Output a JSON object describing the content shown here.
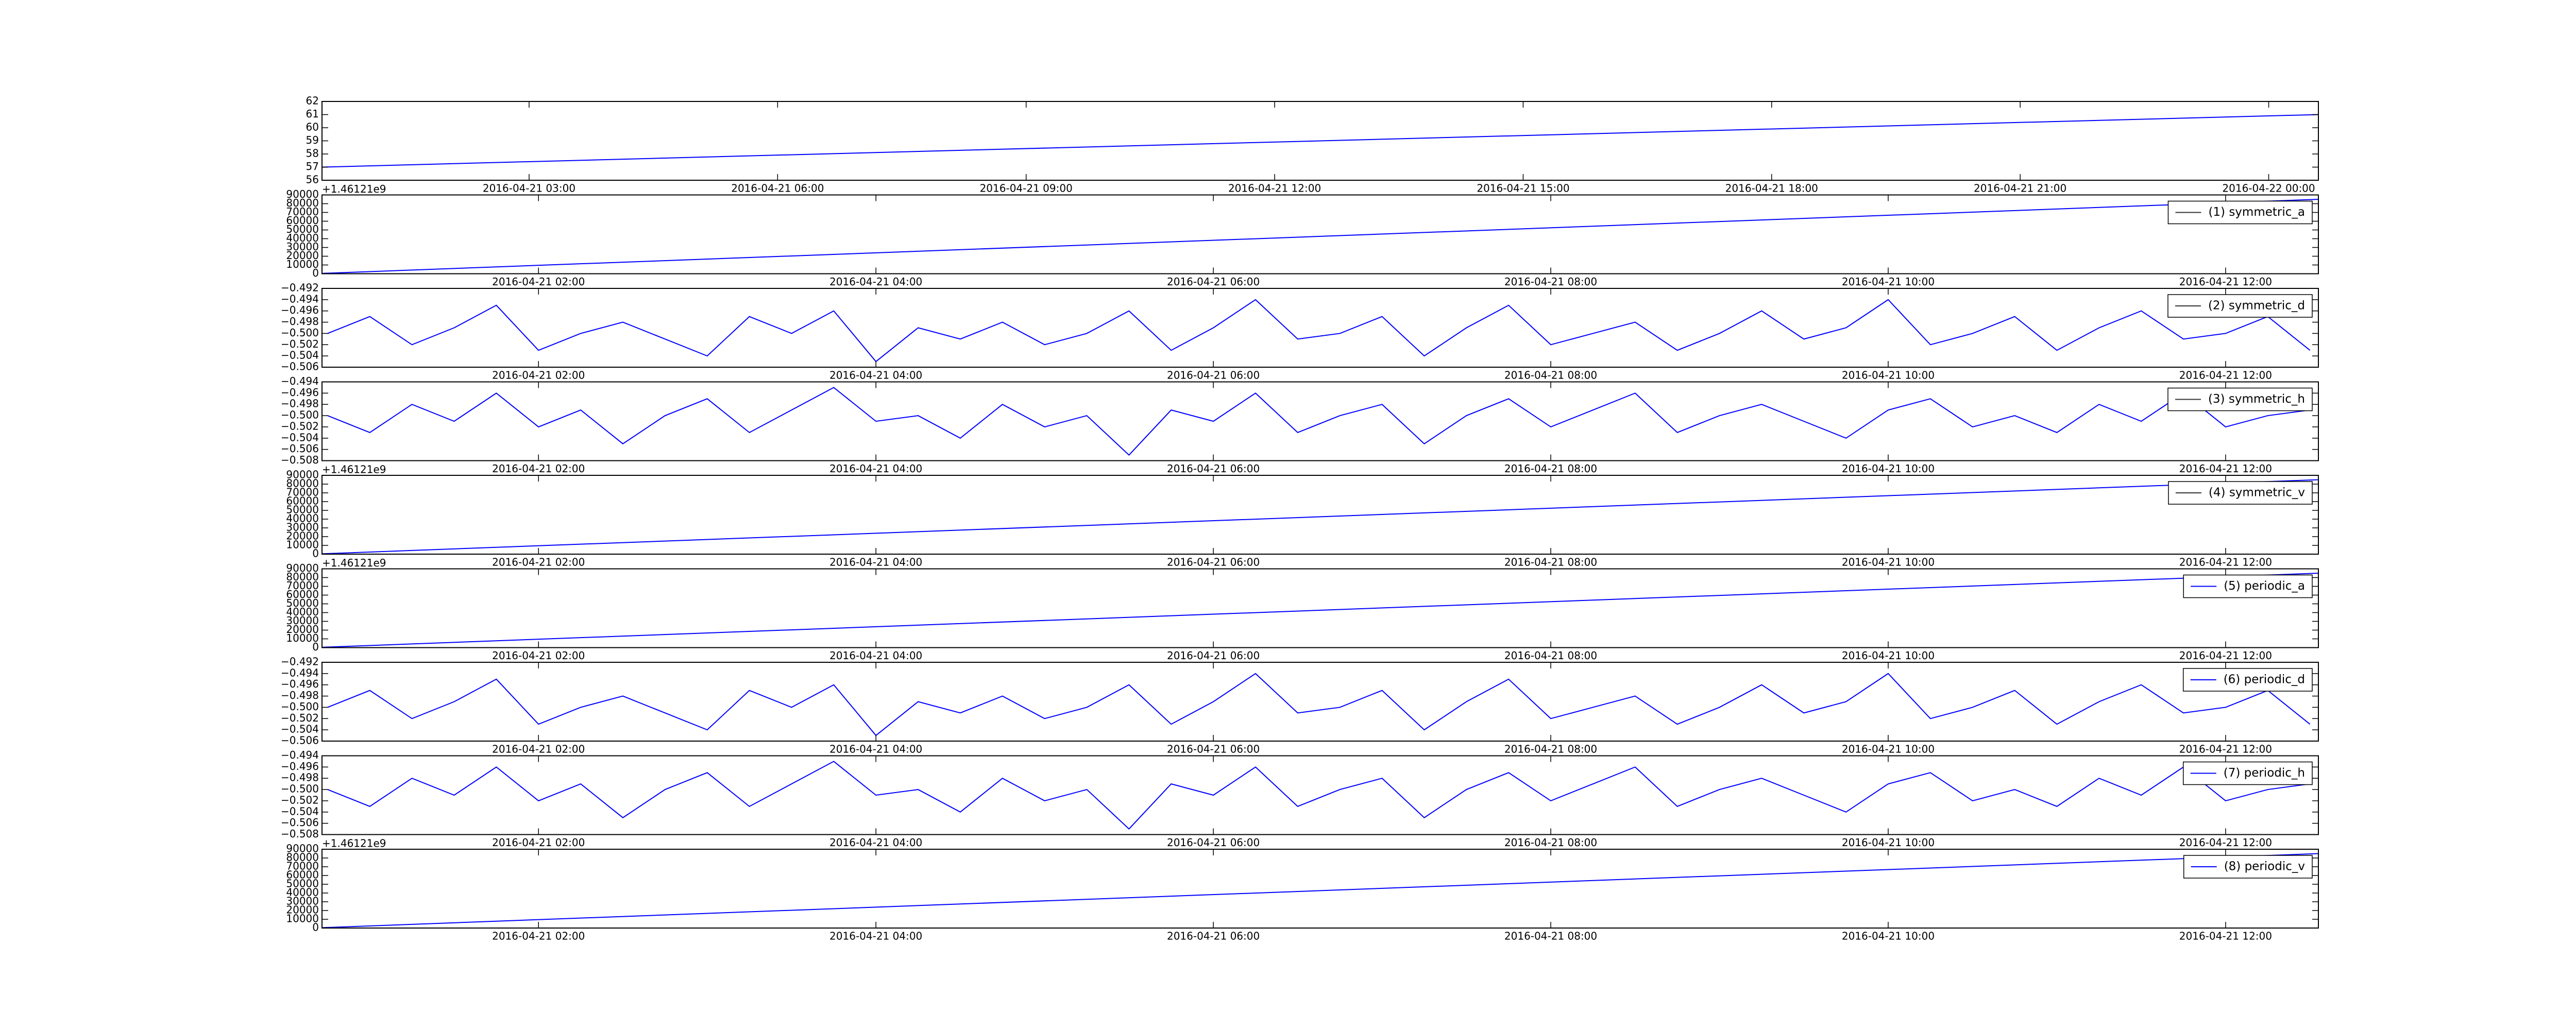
{
  "chart_data": [
    {
      "type": "line",
      "x": [
        "2016-04-21 00:30",
        "2016-04-22 00:36"
      ],
      "series": [
        {
          "color": "#0000ff",
          "values": [
            57.0,
            61.0
          ]
        }
      ],
      "xlim": [
        "2016-04-21 00:30",
        "2016-04-22 00:36"
      ],
      "ylim": [
        56,
        62
      ],
      "yticks": [
        56,
        57,
        58,
        59,
        60,
        61,
        62
      ],
      "xticks": [
        "2016-04-21 03:00",
        "2016-04-21 06:00",
        "2016-04-21 09:00",
        "2016-04-21 12:00",
        "2016-04-21 15:00",
        "2016-04-21 18:00",
        "2016-04-21 21:00",
        "2016-04-22 00:00"
      ]
    },
    {
      "type": "line",
      "offset_text": "+1.46121e9",
      "legend": "upper right",
      "x": [
        "2016-04-21 00:43",
        "2016-04-21 12:33"
      ],
      "series": [
        {
          "name": "(1) symmetric_a",
          "color": "#0000ff",
          "legend_color": "#333333",
          "values": [
            400,
            85000
          ]
        }
      ],
      "xlim": [
        "2016-04-21 00:43",
        "2016-04-21 12:33"
      ],
      "ylim": [
        0,
        90000
      ],
      "yticks": [
        0,
        10000,
        20000,
        30000,
        40000,
        50000,
        60000,
        70000,
        80000,
        90000
      ],
      "xticks": [
        "2016-04-21 02:00",
        "2016-04-21 04:00",
        "2016-04-21 06:00",
        "2016-04-21 08:00",
        "2016-04-21 10:00",
        "2016-04-21 12:00"
      ]
    },
    {
      "type": "line",
      "legend": "upper right",
      "x": [
        "2016-04-21 00:45",
        "2016-04-21 01:00",
        "2016-04-21 01:15",
        "2016-04-21 01:30",
        "2016-04-21 01:45",
        "2016-04-21 02:00",
        "2016-04-21 02:15",
        "2016-04-21 02:30",
        "2016-04-21 02:45",
        "2016-04-21 03:00",
        "2016-04-21 03:15",
        "2016-04-21 03:30",
        "2016-04-21 03:45",
        "2016-04-21 04:00",
        "2016-04-21 04:15",
        "2016-04-21 04:30",
        "2016-04-21 04:45",
        "2016-04-21 05:00",
        "2016-04-21 05:15",
        "2016-04-21 05:30",
        "2016-04-21 05:45",
        "2016-04-21 06:00",
        "2016-04-21 06:15",
        "2016-04-21 06:30",
        "2016-04-21 06:45",
        "2016-04-21 07:00",
        "2016-04-21 07:15",
        "2016-04-21 07:30",
        "2016-04-21 07:45",
        "2016-04-21 08:00",
        "2016-04-21 08:15",
        "2016-04-21 08:30",
        "2016-04-21 08:45",
        "2016-04-21 09:00",
        "2016-04-21 09:15",
        "2016-04-21 09:30",
        "2016-04-21 09:45",
        "2016-04-21 10:00",
        "2016-04-21 10:15",
        "2016-04-21 10:30",
        "2016-04-21 10:45",
        "2016-04-21 11:00",
        "2016-04-21 11:15",
        "2016-04-21 11:30",
        "2016-04-21 11:45",
        "2016-04-21 12:00",
        "2016-04-21 12:15",
        "2016-04-21 12:30"
      ],
      "series": [
        {
          "name": "(2) symmetric_d",
          "color": "#0000ff",
          "legend_color": "#333333",
          "values": [
            -0.5,
            -0.497,
            -0.502,
            -0.499,
            -0.495,
            -0.503,
            -0.5,
            -0.498,
            -0.501,
            -0.504,
            -0.497,
            -0.5,
            -0.496,
            -0.505,
            -0.499,
            -0.501,
            -0.498,
            -0.502,
            -0.5,
            -0.496,
            -0.503,
            -0.499,
            -0.494,
            -0.501,
            -0.5,
            -0.497,
            -0.504,
            -0.499,
            -0.495,
            -0.502,
            -0.5,
            -0.498,
            -0.503,
            -0.5,
            -0.496,
            -0.501,
            -0.499,
            -0.494,
            -0.502,
            -0.5,
            -0.497,
            -0.503,
            -0.499,
            -0.496,
            -0.501,
            -0.5,
            -0.497,
            -0.503
          ]
        }
      ],
      "xlim": [
        "2016-04-21 00:43",
        "2016-04-21 12:33"
      ],
      "ylim": [
        -0.506,
        -0.492
      ],
      "yticks": [
        {
          "value": -0.506,
          "label": "−0.506"
        },
        {
          "value": -0.504,
          "label": "−0.504"
        },
        {
          "value": -0.502,
          "label": "−0.502"
        },
        {
          "value": -0.5,
          "label": "−0.500"
        },
        {
          "value": -0.498,
          "label": "−0.498"
        },
        {
          "value": -0.496,
          "label": "−0.496"
        },
        {
          "value": -0.494,
          "label": "−0.494"
        },
        {
          "value": -0.492,
          "label": "−0.492"
        }
      ],
      "xticks": [
        "2016-04-21 02:00",
        "2016-04-21 04:00",
        "2016-04-21 06:00",
        "2016-04-21 08:00",
        "2016-04-21 10:00",
        "2016-04-21 12:00"
      ]
    },
    {
      "type": "line",
      "legend": "upper right",
      "x": [
        "2016-04-21 00:45",
        "2016-04-21 01:00",
        "2016-04-21 01:15",
        "2016-04-21 01:30",
        "2016-04-21 01:45",
        "2016-04-21 02:00",
        "2016-04-21 02:15",
        "2016-04-21 02:30",
        "2016-04-21 02:45",
        "2016-04-21 03:00",
        "2016-04-21 03:15",
        "2016-04-21 03:30",
        "2016-04-21 03:45",
        "2016-04-21 04:00",
        "2016-04-21 04:15",
        "2016-04-21 04:30",
        "2016-04-21 04:45",
        "2016-04-21 05:00",
        "2016-04-21 05:15",
        "2016-04-21 05:30",
        "2016-04-21 05:45",
        "2016-04-21 06:00",
        "2016-04-21 06:15",
        "2016-04-21 06:30",
        "2016-04-21 06:45",
        "2016-04-21 07:00",
        "2016-04-21 07:15",
        "2016-04-21 07:30",
        "2016-04-21 07:45",
        "2016-04-21 08:00",
        "2016-04-21 08:15",
        "2016-04-21 08:30",
        "2016-04-21 08:45",
        "2016-04-21 09:00",
        "2016-04-21 09:15",
        "2016-04-21 09:30",
        "2016-04-21 09:45",
        "2016-04-21 10:00",
        "2016-04-21 10:15",
        "2016-04-21 10:30",
        "2016-04-21 10:45",
        "2016-04-21 11:00",
        "2016-04-21 11:15",
        "2016-04-21 11:30",
        "2016-04-21 11:45",
        "2016-04-21 12:00",
        "2016-04-21 12:15",
        "2016-04-21 12:30"
      ],
      "series": [
        {
          "name": "(3) symmetric_h",
          "color": "#0000ff",
          "legend_color": "#333333",
          "values": [
            -0.5,
            -0.503,
            -0.498,
            -0.501,
            -0.496,
            -0.502,
            -0.499,
            -0.505,
            -0.5,
            -0.497,
            -0.503,
            -0.499,
            -0.495,
            -0.501,
            -0.5,
            -0.504,
            -0.498,
            -0.502,
            -0.5,
            -0.507,
            -0.499,
            -0.501,
            -0.496,
            -0.503,
            -0.5,
            -0.498,
            -0.505,
            -0.5,
            -0.497,
            -0.502,
            -0.499,
            -0.496,
            -0.503,
            -0.5,
            -0.498,
            -0.501,
            -0.504,
            -0.499,
            -0.497,
            -0.502,
            -0.5,
            -0.503,
            -0.498,
            -0.501,
            -0.496,
            -0.502,
            -0.5,
            -0.499
          ]
        }
      ],
      "xlim": [
        "2016-04-21 00:43",
        "2016-04-21 12:33"
      ],
      "ylim": [
        -0.508,
        -0.494
      ],
      "yticks": [
        {
          "value": -0.508,
          "label": "−0.508"
        },
        {
          "value": -0.506,
          "label": "−0.506"
        },
        {
          "value": -0.504,
          "label": "−0.504"
        },
        {
          "value": -0.502,
          "label": "−0.502"
        },
        {
          "value": -0.5,
          "label": "−0.500"
        },
        {
          "value": -0.498,
          "label": "−0.498"
        },
        {
          "value": -0.496,
          "label": "−0.496"
        },
        {
          "value": -0.494,
          "label": "−0.494"
        }
      ],
      "xticks": [
        "2016-04-21 02:00",
        "2016-04-21 04:00",
        "2016-04-21 06:00",
        "2016-04-21 08:00",
        "2016-04-21 10:00",
        "2016-04-21 12:00"
      ]
    },
    {
      "type": "line",
      "offset_text": "+1.46121e9",
      "legend": "upper right",
      "x": [
        "2016-04-21 00:43",
        "2016-04-21 12:33"
      ],
      "series": [
        {
          "name": "(4) symmetric_v",
          "color": "#0000ff",
          "legend_color": "#333333",
          "values": [
            400,
            85000
          ]
        }
      ],
      "xlim": [
        "2016-04-21 00:43",
        "2016-04-21 12:33"
      ],
      "ylim": [
        0,
        90000
      ],
      "yticks": [
        0,
        10000,
        20000,
        30000,
        40000,
        50000,
        60000,
        70000,
        80000,
        90000
      ],
      "xticks": [
        "2016-04-21 02:00",
        "2016-04-21 04:00",
        "2016-04-21 06:00",
        "2016-04-21 08:00",
        "2016-04-21 10:00",
        "2016-04-21 12:00"
      ]
    },
    {
      "type": "line",
      "offset_text": "+1.46121e9",
      "legend": "upper right",
      "x": [
        "2016-04-21 00:43",
        "2016-04-21 12:33"
      ],
      "series": [
        {
          "name": "(5) periodic_a",
          "color": "#0000ff",
          "legend_color": "#0000ff",
          "values": [
            400,
            85000
          ]
        }
      ],
      "xlim": [
        "2016-04-21 00:43",
        "2016-04-21 12:33"
      ],
      "ylim": [
        0,
        90000
      ],
      "yticks": [
        0,
        10000,
        20000,
        30000,
        40000,
        50000,
        60000,
        70000,
        80000,
        90000
      ],
      "xticks": [
        "2016-04-21 02:00",
        "2016-04-21 04:00",
        "2016-04-21 06:00",
        "2016-04-21 08:00",
        "2016-04-21 10:00",
        "2016-04-21 12:00"
      ]
    },
    {
      "type": "line",
      "legend": "upper right",
      "x": [
        "2016-04-21 00:45",
        "2016-04-21 01:00",
        "2016-04-21 01:15",
        "2016-04-21 01:30",
        "2016-04-21 01:45",
        "2016-04-21 02:00",
        "2016-04-21 02:15",
        "2016-04-21 02:30",
        "2016-04-21 02:45",
        "2016-04-21 03:00",
        "2016-04-21 03:15",
        "2016-04-21 03:30",
        "2016-04-21 03:45",
        "2016-04-21 04:00",
        "2016-04-21 04:15",
        "2016-04-21 04:30",
        "2016-04-21 04:45",
        "2016-04-21 05:00",
        "2016-04-21 05:15",
        "2016-04-21 05:30",
        "2016-04-21 05:45",
        "2016-04-21 06:00",
        "2016-04-21 06:15",
        "2016-04-21 06:30",
        "2016-04-21 06:45",
        "2016-04-21 07:00",
        "2016-04-21 07:15",
        "2016-04-21 07:30",
        "2016-04-21 07:45",
        "2016-04-21 08:00",
        "2016-04-21 08:15",
        "2016-04-21 08:30",
        "2016-04-21 08:45",
        "2016-04-21 09:00",
        "2016-04-21 09:15",
        "2016-04-21 09:30",
        "2016-04-21 09:45",
        "2016-04-21 10:00",
        "2016-04-21 10:15",
        "2016-04-21 10:30",
        "2016-04-21 10:45",
        "2016-04-21 11:00",
        "2016-04-21 11:15",
        "2016-04-21 11:30",
        "2016-04-21 11:45",
        "2016-04-21 12:00",
        "2016-04-21 12:15",
        "2016-04-21 12:30"
      ],
      "series": [
        {
          "name": "(6) periodic_d",
          "color": "#0000ff",
          "legend_color": "#0000ff",
          "values": [
            -0.5,
            -0.497,
            -0.502,
            -0.499,
            -0.495,
            -0.503,
            -0.5,
            -0.498,
            -0.501,
            -0.504,
            -0.497,
            -0.5,
            -0.496,
            -0.505,
            -0.499,
            -0.501,
            -0.498,
            -0.502,
            -0.5,
            -0.496,
            -0.503,
            -0.499,
            -0.494,
            -0.501,
            -0.5,
            -0.497,
            -0.504,
            -0.499,
            -0.495,
            -0.502,
            -0.5,
            -0.498,
            -0.503,
            -0.5,
            -0.496,
            -0.501,
            -0.499,
            -0.494,
            -0.502,
            -0.5,
            -0.497,
            -0.503,
            -0.499,
            -0.496,
            -0.501,
            -0.5,
            -0.497,
            -0.503
          ]
        }
      ],
      "xlim": [
        "2016-04-21 00:43",
        "2016-04-21 12:33"
      ],
      "ylim": [
        -0.506,
        -0.492
      ],
      "yticks": [
        {
          "value": -0.506,
          "label": "−0.506"
        },
        {
          "value": -0.504,
          "label": "−0.504"
        },
        {
          "value": -0.502,
          "label": "−0.502"
        },
        {
          "value": -0.5,
          "label": "−0.500"
        },
        {
          "value": -0.498,
          "label": "−0.498"
        },
        {
          "value": -0.496,
          "label": "−0.496"
        },
        {
          "value": -0.494,
          "label": "−0.494"
        },
        {
          "value": -0.492,
          "label": "−0.492"
        }
      ],
      "xticks": [
        "2016-04-21 02:00",
        "2016-04-21 04:00",
        "2016-04-21 06:00",
        "2016-04-21 08:00",
        "2016-04-21 10:00",
        "2016-04-21 12:00"
      ]
    },
    {
      "type": "line",
      "legend": "upper right",
      "x": [
        "2016-04-21 00:45",
        "2016-04-21 01:00",
        "2016-04-21 01:15",
        "2016-04-21 01:30",
        "2016-04-21 01:45",
        "2016-04-21 02:00",
        "2016-04-21 02:15",
        "2016-04-21 02:30",
        "2016-04-21 02:45",
        "2016-04-21 03:00",
        "2016-04-21 03:15",
        "2016-04-21 03:30",
        "2016-04-21 03:45",
        "2016-04-21 04:00",
        "2016-04-21 04:15",
        "2016-04-21 04:30",
        "2016-04-21 04:45",
        "2016-04-21 05:00",
        "2016-04-21 05:15",
        "2016-04-21 05:30",
        "2016-04-21 05:45",
        "2016-04-21 06:00",
        "2016-04-21 06:15",
        "2016-04-21 06:30",
        "2016-04-21 06:45",
        "2016-04-21 07:00",
        "2016-04-21 07:15",
        "2016-04-21 07:30",
        "2016-04-21 07:45",
        "2016-04-21 08:00",
        "2016-04-21 08:15",
        "2016-04-21 08:30",
        "2016-04-21 08:45",
        "2016-04-21 09:00",
        "2016-04-21 09:15",
        "2016-04-21 09:30",
        "2016-04-21 09:45",
        "2016-04-21 10:00",
        "2016-04-21 10:15",
        "2016-04-21 10:30",
        "2016-04-21 10:45",
        "2016-04-21 11:00",
        "2016-04-21 11:15",
        "2016-04-21 11:30",
        "2016-04-21 11:45",
        "2016-04-21 12:00",
        "2016-04-21 12:15",
        "2016-04-21 12:30"
      ],
      "series": [
        {
          "name": "(7) periodic_h",
          "color": "#0000ff",
          "legend_color": "#0000ff",
          "values": [
            -0.5,
            -0.503,
            -0.498,
            -0.501,
            -0.496,
            -0.502,
            -0.499,
            -0.505,
            -0.5,
            -0.497,
            -0.503,
            -0.499,
            -0.495,
            -0.501,
            -0.5,
            -0.504,
            -0.498,
            -0.502,
            -0.5,
            -0.507,
            -0.499,
            -0.501,
            -0.496,
            -0.503,
            -0.5,
            -0.498,
            -0.505,
            -0.5,
            -0.497,
            -0.502,
            -0.499,
            -0.496,
            -0.503,
            -0.5,
            -0.498,
            -0.501,
            -0.504,
            -0.499,
            -0.497,
            -0.502,
            -0.5,
            -0.503,
            -0.498,
            -0.501,
            -0.496,
            -0.502,
            -0.5,
            -0.499
          ]
        }
      ],
      "xlim": [
        "2016-04-21 00:43",
        "2016-04-21 12:33"
      ],
      "ylim": [
        -0.508,
        -0.494
      ],
      "yticks": [
        {
          "value": -0.508,
          "label": "−0.508"
        },
        {
          "value": -0.506,
          "label": "−0.506"
        },
        {
          "value": -0.504,
          "label": "−0.504"
        },
        {
          "value": -0.502,
          "label": "−0.502"
        },
        {
          "value": -0.5,
          "label": "−0.500"
        },
        {
          "value": -0.498,
          "label": "−0.498"
        },
        {
          "value": -0.496,
          "label": "−0.496"
        },
        {
          "value": -0.494,
          "label": "−0.494"
        }
      ],
      "xticks": [
        "2016-04-21 02:00",
        "2016-04-21 04:00",
        "2016-04-21 06:00",
        "2016-04-21 08:00",
        "2016-04-21 10:00",
        "2016-04-21 12:00"
      ]
    },
    {
      "type": "line",
      "offset_text": "+1.46121e9",
      "legend": "upper right",
      "x": [
        "2016-04-21 00:43",
        "2016-04-21 12:33"
      ],
      "series": [
        {
          "name": "(8) periodic_v",
          "color": "#0000ff",
          "legend_color": "#0000ff",
          "values": [
            400,
            85000
          ]
        }
      ],
      "xlim": [
        "2016-04-21 00:43",
        "2016-04-21 12:33"
      ],
      "ylim": [
        0,
        90000
      ],
      "yticks": [
        0,
        10000,
        20000,
        30000,
        40000,
        50000,
        60000,
        70000,
        80000,
        90000
      ],
      "xticks": [
        "2016-04-21 02:00",
        "2016-04-21 04:00",
        "2016-04-21 06:00",
        "2016-04-21 08:00",
        "2016-04-21 10:00",
        "2016-04-21 12:00"
      ]
    }
  ]
}
